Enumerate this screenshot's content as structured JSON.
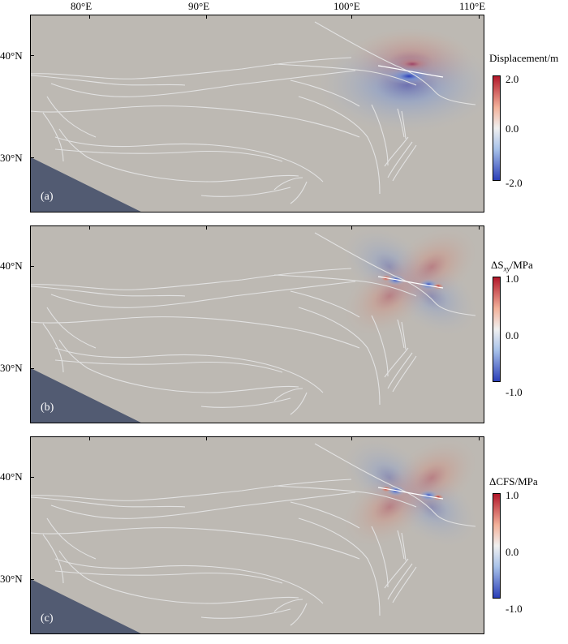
{
  "x_axis_ticks": [
    "80°E",
    "90°E",
    "100°E",
    "110°E"
  ],
  "y_axis_ticks": [
    "40°N",
    "30°N"
  ],
  "panels": [
    {
      "label": "(a)",
      "colorbar": {
        "title": "Displacement/m",
        "ticks": [
          "2.0",
          "0.0",
          "-2.0"
        ]
      }
    },
    {
      "label": "(b)",
      "colorbar": {
        "title_prefix": "ΔS",
        "title_sub": "xy",
        "title_suffix": "/MPa",
        "ticks": [
          "1.0",
          "0.0",
          "-1.0"
        ]
      }
    },
    {
      "label": "(c)",
      "colorbar": {
        "title": "ΔCFS/MPa",
        "ticks": [
          "1.0",
          "0.0",
          "-1.0"
        ]
      }
    }
  ],
  "colors": {
    "background": "#bdb9b3",
    "fault_lines": "#e2e2e2",
    "ocean": "#525b72",
    "positive": "#b2182b",
    "zero": "#f0f0f0",
    "negative": "#2b3fb8"
  }
}
